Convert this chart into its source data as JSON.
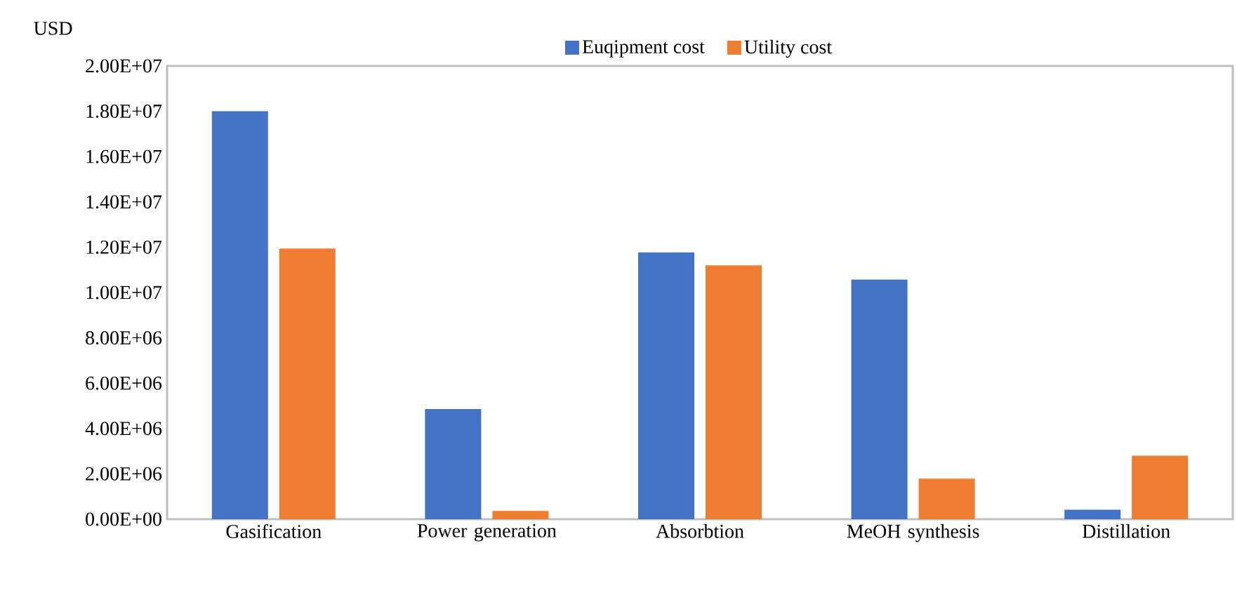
{
  "chart_data": {
    "type": "bar",
    "ylabel": "USD",
    "legend": "top",
    "categories": [
      "Gasification",
      "Power generation",
      "Absorbtion",
      "MeOH synthesis",
      "Distillation"
    ],
    "series": [
      {
        "name": "Euqipment cost",
        "color": "#4472c4",
        "values": [
          18000000,
          4860000,
          11770000,
          10570000,
          420000
        ]
      },
      {
        "name": "Utility cost",
        "color": "#ed7d31",
        "values": [
          11940000,
          360000,
          11200000,
          1790000,
          2800000
        ]
      }
    ],
    "ylim": [
      0,
      20000000
    ],
    "yticks": [
      {
        "value": 0,
        "label": "0.00E+00"
      },
      {
        "value": 2000000,
        "label": "2.00E+06"
      },
      {
        "value": 4000000,
        "label": "4.00E+06"
      },
      {
        "value": 6000000,
        "label": "6.00E+06"
      },
      {
        "value": 8000000,
        "label": "8.00E+06"
      },
      {
        "value": 10000000,
        "label": "1.00E+07"
      },
      {
        "value": 12000000,
        "label": "1.20E+07"
      },
      {
        "value": 14000000,
        "label": "1.40E+07"
      },
      {
        "value": 16000000,
        "label": "1.60E+07"
      },
      {
        "value": 18000000,
        "label": "1.80E+07"
      },
      {
        "value": 20000000,
        "label": "2.00E+07"
      }
    ]
  }
}
